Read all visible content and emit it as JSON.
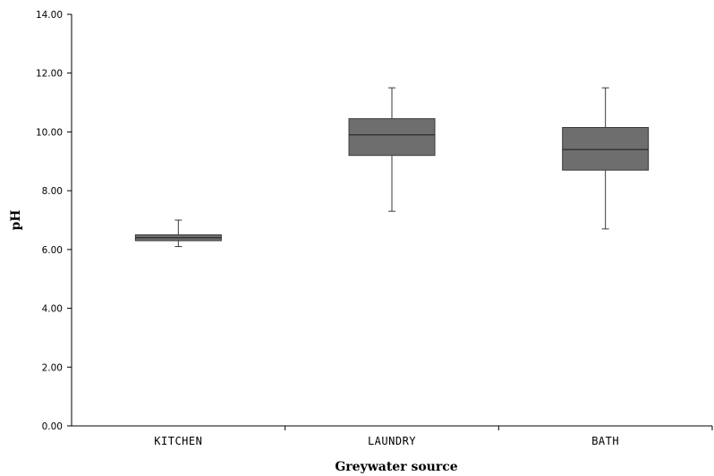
{
  "chart_data": {
    "type": "box",
    "title": "",
    "xlabel": "Greywater source",
    "ylabel": "pH",
    "ylim": [
      0,
      14
    ],
    "yticks": [
      "0.00",
      "2.00",
      "4.00",
      "6.00",
      "8.00",
      "10.00",
      "12.00",
      "14.00"
    ],
    "grid": false,
    "categories": [
      "KITCHEN",
      "LAUNDRY",
      "BATH"
    ],
    "series": [
      {
        "boxes": [
          {
            "min": 6.1,
            "q1": 6.3,
            "median": 6.4,
            "q3": 6.5,
            "max": 7.0
          },
          {
            "min": 7.3,
            "q1": 9.2,
            "median": 9.9,
            "q3": 10.45,
            "max": 11.5
          },
          {
            "min": 6.7,
            "q1": 8.7,
            "median": 9.4,
            "q3": 10.15,
            "max": 11.5
          }
        ]
      }
    ],
    "colors": {
      "box_fill": "#6e6e6e",
      "box_stroke": "#3a3a3a",
      "axis": "#000000"
    }
  }
}
